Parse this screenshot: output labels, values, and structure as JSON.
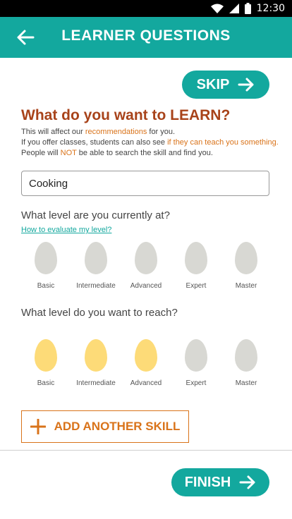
{
  "status_bar": {
    "time": "12:30",
    "icons": [
      "wifi-icon",
      "signal-icon",
      "battery-icon"
    ]
  },
  "app_bar": {
    "title": "LEARNER QUESTIONS",
    "back_icon": "arrow-left-icon"
  },
  "skip_label": "SKIP",
  "learn_section": {
    "heading": "What do you want to LEARN?",
    "desc_line1_a": "This will affect our ",
    "desc_line1_b": "recommendations",
    "desc_line1_c": " for you.",
    "desc_line2_a": "If you offer classes, students can also see ",
    "desc_line2_b": "if they can teach you something.",
    "desc_line3_a": "People will ",
    "desc_line3_b": "NOT",
    "desc_line3_c": " be able to search the skill and find you."
  },
  "skill_input": {
    "value": "Cooking"
  },
  "current_level": {
    "question": "What level are you currently at?",
    "link": "How to evaluate my level?",
    "selected_count": 0
  },
  "target_level": {
    "question": "What level do you want to reach?",
    "selected_count": 3
  },
  "levels": [
    "Basic",
    "Intermediate",
    "Advanced",
    "Expert",
    "Master"
  ],
  "add_skill_label": "ADD ANOTHER SKILL",
  "finish_label": "FINISH",
  "colors": {
    "teal": "#13a89e",
    "heading": "#a8431a",
    "orange": "#d9731a",
    "egg_selected": "#fddb78",
    "egg_unselected": "#d8d8d3"
  }
}
